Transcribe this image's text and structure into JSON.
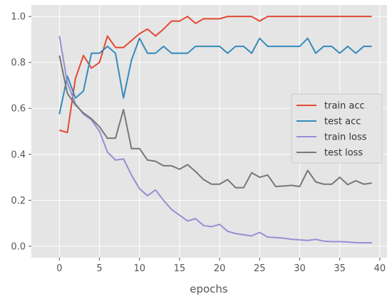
{
  "chart_data": {
    "type": "line",
    "title": "",
    "xlabel": "epochs",
    "ylabel": "",
    "xlim": [
      -3.5,
      40.9
    ],
    "ylim": [
      -0.05,
      1.05
    ],
    "xticks": [
      0,
      5,
      10,
      15,
      20,
      25,
      30,
      35,
      40
    ],
    "yticks": [
      0.0,
      0.2,
      0.4,
      0.6,
      0.8,
      1.0
    ],
    "xtick_labels": [
      "0",
      "5",
      "10",
      "15",
      "20",
      "25",
      "30",
      "35",
      "40"
    ],
    "ytick_labels": [
      "0.0",
      "0.2",
      "0.4",
      "0.6",
      "0.8",
      "1.0"
    ],
    "grid": true,
    "background": "#e5e5e5",
    "legend_position": "center-right",
    "x": [
      0,
      1,
      2,
      3,
      4,
      5,
      6,
      7,
      8,
      9,
      10,
      11,
      12,
      13,
      14,
      15,
      16,
      17,
      18,
      19,
      20,
      21,
      22,
      23,
      24,
      25,
      26,
      27,
      28,
      29,
      30,
      31,
      32,
      33,
      34,
      35,
      36,
      37,
      38,
      39
    ],
    "series": [
      {
        "name": "train acc",
        "color": "#e24a33",
        "values": [
          0.505,
          0.495,
          0.73,
          0.83,
          0.775,
          0.8,
          0.915,
          0.865,
          0.865,
          0.895,
          0.925,
          0.945,
          0.915,
          0.945,
          0.98,
          0.98,
          1.0,
          0.97,
          0.99,
          0.99,
          0.99,
          1.0,
          1.0,
          1.0,
          1.0,
          0.98,
          1.0,
          1.0,
          1.0,
          1.0,
          1.0,
          1.0,
          1.0,
          1.0,
          1.0,
          1.0,
          1.0,
          1.0,
          1.0,
          1.0
        ]
      },
      {
        "name": "test acc",
        "color": "#348abd",
        "values": [
          0.575,
          0.74,
          0.645,
          0.675,
          0.84,
          0.84,
          0.87,
          0.84,
          0.645,
          0.81,
          0.905,
          0.84,
          0.84,
          0.87,
          0.84,
          0.84,
          0.84,
          0.87,
          0.87,
          0.87,
          0.87,
          0.84,
          0.87,
          0.87,
          0.84,
          0.905,
          0.87,
          0.87,
          0.87,
          0.87,
          0.87,
          0.905,
          0.84,
          0.87,
          0.87,
          0.84,
          0.87,
          0.84,
          0.87,
          0.87
        ]
      },
      {
        "name": "train loss",
        "color": "#988ed5",
        "values": [
          0.915,
          0.71,
          0.62,
          0.575,
          0.55,
          0.5,
          0.41,
          0.375,
          0.38,
          0.31,
          0.25,
          0.22,
          0.245,
          0.2,
          0.16,
          0.135,
          0.11,
          0.12,
          0.09,
          0.085,
          0.095,
          0.065,
          0.055,
          0.05,
          0.045,
          0.06,
          0.04,
          0.038,
          0.035,
          0.03,
          0.028,
          0.025,
          0.03,
          0.022,
          0.02,
          0.02,
          0.018,
          0.016,
          0.015,
          0.015
        ]
      },
      {
        "name": "test loss",
        "color": "#777777",
        "values": [
          0.83,
          0.665,
          0.615,
          0.58,
          0.555,
          0.52,
          0.47,
          0.47,
          0.595,
          0.425,
          0.425,
          0.375,
          0.37,
          0.35,
          0.35,
          0.335,
          0.355,
          0.325,
          0.29,
          0.27,
          0.27,
          0.29,
          0.255,
          0.255,
          0.32,
          0.3,
          0.31,
          0.26,
          0.262,
          0.265,
          0.26,
          0.33,
          0.28,
          0.27,
          0.27,
          0.3,
          0.268,
          0.285,
          0.27,
          0.275
        ]
      }
    ]
  }
}
